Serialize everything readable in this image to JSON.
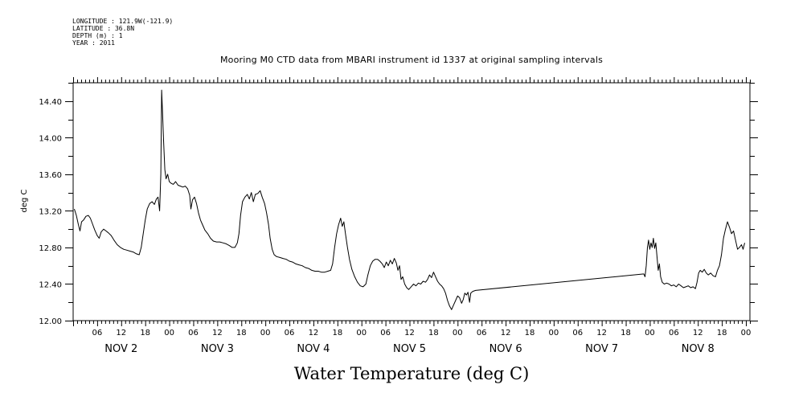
{
  "meta": {
    "longitude": "LONGITUDE : 121.9W(-121.9)",
    "latitude": "LATITUDE : 36.8N",
    "depth": "DEPTH (m) : 1",
    "year": "YEAR : 2011"
  },
  "chart_data": {
    "type": "line",
    "title": "Mooring M0 CTD data from MBARI instrument id 1337 at original sampling intervals",
    "bottom_title": "Water Temperature (deg C)",
    "ylabel": "deg C",
    "xlabel": "",
    "ylim": [
      12.0,
      14.6
    ],
    "yticks": [
      "12.00",
      "12.40",
      "12.80",
      "13.20",
      "13.60",
      "14.00",
      "14.40"
    ],
    "xlim_hours": [
      0,
      169
    ],
    "x_hour_ticks": [
      "06",
      "12",
      "18",
      "00",
      "06",
      "12",
      "18",
      "00",
      "06",
      "12",
      "18",
      "00",
      "06",
      "12",
      "18",
      "00",
      "06",
      "12",
      "18",
      "00",
      "06",
      "12",
      "18",
      "00",
      "06",
      "12",
      "18",
      "00"
    ],
    "day_labels": [
      "NOV  2",
      "NOV  3",
      "NOV  4",
      "NOV  5",
      "NOV  6",
      "NOV  7",
      "NOV  8"
    ],
    "grid": false,
    "x_unit": "hours since Nov 2 00:00 (2011)",
    "series": [
      {
        "color": "#000000",
        "points": [
          [
            0.3,
            13.22
          ],
          [
            0.8,
            13.15
          ],
          [
            1.3,
            13.05
          ],
          [
            1.7,
            12.98
          ],
          [
            2.1,
            13.08
          ],
          [
            2.6,
            13.1
          ],
          [
            3.2,
            13.14
          ],
          [
            3.8,
            13.15
          ],
          [
            4.3,
            13.12
          ],
          [
            4.9,
            13.05
          ],
          [
            5.4,
            12.99
          ],
          [
            6.0,
            12.93
          ],
          [
            6.5,
            12.9
          ],
          [
            7.0,
            12.97
          ],
          [
            7.6,
            13.0
          ],
          [
            8.2,
            12.98
          ],
          [
            8.8,
            12.96
          ],
          [
            9.5,
            12.93
          ],
          [
            10.2,
            12.88
          ],
          [
            11.0,
            12.83
          ],
          [
            11.8,
            12.8
          ],
          [
            12.6,
            12.78
          ],
          [
            13.4,
            12.77
          ],
          [
            14.2,
            12.76
          ],
          [
            15.0,
            12.75
          ],
          [
            15.8,
            12.73
          ],
          [
            16.5,
            12.72
          ],
          [
            17.0,
            12.8
          ],
          [
            17.5,
            12.95
          ],
          [
            18.0,
            13.1
          ],
          [
            18.5,
            13.22
          ],
          [
            19.1,
            13.28
          ],
          [
            19.7,
            13.3
          ],
          [
            20.3,
            13.27
          ],
          [
            20.8,
            13.33
          ],
          [
            21.2,
            13.35
          ],
          [
            21.6,
            13.2
          ],
          [
            21.9,
            13.6
          ],
          [
            22.1,
            14.52
          ],
          [
            22.3,
            14.3
          ],
          [
            22.6,
            13.95
          ],
          [
            22.9,
            13.65
          ],
          [
            23.2,
            13.55
          ],
          [
            23.6,
            13.6
          ],
          [
            24.0,
            13.52
          ],
          [
            24.5,
            13.5
          ],
          [
            25.0,
            13.49
          ],
          [
            25.6,
            13.52
          ],
          [
            26.2,
            13.48
          ],
          [
            26.8,
            13.47
          ],
          [
            27.4,
            13.46
          ],
          [
            28.0,
            13.47
          ],
          [
            28.6,
            13.44
          ],
          [
            29.1,
            13.37
          ],
          [
            29.4,
            13.22
          ],
          [
            29.8,
            13.32
          ],
          [
            30.3,
            13.35
          ],
          [
            30.8,
            13.28
          ],
          [
            31.3,
            13.18
          ],
          [
            31.8,
            13.1
          ],
          [
            32.3,
            13.05
          ],
          [
            32.9,
            12.99
          ],
          [
            33.6,
            12.95
          ],
          [
            34.3,
            12.9
          ],
          [
            35.0,
            12.87
          ],
          [
            35.8,
            12.86
          ],
          [
            36.6,
            12.86
          ],
          [
            37.4,
            12.85
          ],
          [
            38.2,
            12.84
          ],
          [
            39.0,
            12.82
          ],
          [
            39.7,
            12.8
          ],
          [
            40.4,
            12.8
          ],
          [
            41.0,
            12.85
          ],
          [
            41.4,
            12.95
          ],
          [
            41.8,
            13.15
          ],
          [
            42.3,
            13.3
          ],
          [
            42.9,
            13.35
          ],
          [
            43.5,
            13.38
          ],
          [
            44.0,
            13.33
          ],
          [
            44.5,
            13.4
          ],
          [
            45.0,
            13.3
          ],
          [
            45.5,
            13.38
          ],
          [
            46.1,
            13.39
          ],
          [
            46.7,
            13.42
          ],
          [
            47.2,
            13.35
          ],
          [
            47.8,
            13.28
          ],
          [
            48.3,
            13.18
          ],
          [
            48.8,
            13.05
          ],
          [
            49.2,
            12.9
          ],
          [
            49.7,
            12.78
          ],
          [
            50.2,
            12.72
          ],
          [
            50.8,
            12.7
          ],
          [
            51.6,
            12.69
          ],
          [
            52.4,
            12.68
          ],
          [
            53.2,
            12.67
          ],
          [
            54.0,
            12.65
          ],
          [
            54.8,
            12.64
          ],
          [
            55.6,
            12.62
          ],
          [
            56.4,
            12.61
          ],
          [
            57.2,
            12.6
          ],
          [
            58.0,
            12.58
          ],
          [
            58.8,
            12.57
          ],
          [
            59.6,
            12.55
          ],
          [
            60.4,
            12.54
          ],
          [
            61.2,
            12.54
          ],
          [
            62.0,
            12.53
          ],
          [
            62.8,
            12.53
          ],
          [
            63.6,
            12.54
          ],
          [
            64.3,
            12.55
          ],
          [
            64.8,
            12.62
          ],
          [
            65.3,
            12.8
          ],
          [
            65.8,
            12.95
          ],
          [
            66.3,
            13.05
          ],
          [
            66.8,
            13.12
          ],
          [
            67.2,
            13.03
          ],
          [
            67.6,
            13.08
          ],
          [
            68.0,
            12.95
          ],
          [
            68.5,
            12.8
          ],
          [
            69.0,
            12.67
          ],
          [
            69.6,
            12.56
          ],
          [
            70.3,
            12.48
          ],
          [
            71.0,
            12.42
          ],
          [
            71.7,
            12.38
          ],
          [
            72.4,
            12.37
          ],
          [
            73.1,
            12.4
          ],
          [
            73.6,
            12.5
          ],
          [
            74.2,
            12.6
          ],
          [
            74.8,
            12.65
          ],
          [
            75.4,
            12.67
          ],
          [
            76.0,
            12.67
          ],
          [
            76.6,
            12.65
          ],
          [
            77.2,
            12.62
          ],
          [
            77.7,
            12.58
          ],
          [
            78.2,
            12.64
          ],
          [
            78.7,
            12.6
          ],
          [
            79.2,
            12.66
          ],
          [
            79.7,
            12.62
          ],
          [
            80.2,
            12.68
          ],
          [
            80.7,
            12.63
          ],
          [
            81.1,
            12.55
          ],
          [
            81.5,
            12.6
          ],
          [
            81.9,
            12.45
          ],
          [
            82.3,
            12.48
          ],
          [
            82.8,
            12.4
          ],
          [
            83.3,
            12.36
          ],
          [
            83.8,
            12.34
          ],
          [
            84.4,
            12.37
          ],
          [
            85.0,
            12.4
          ],
          [
            85.6,
            12.38
          ],
          [
            86.2,
            12.41
          ],
          [
            86.8,
            12.4
          ],
          [
            87.4,
            12.43
          ],
          [
            88.0,
            12.42
          ],
          [
            88.5,
            12.45
          ],
          [
            89.0,
            12.5
          ],
          [
            89.5,
            12.47
          ],
          [
            90.0,
            12.53
          ],
          [
            90.5,
            12.48
          ],
          [
            91.0,
            12.43
          ],
          [
            91.5,
            12.4
          ],
          [
            92.0,
            12.38
          ],
          [
            92.5,
            12.35
          ],
          [
            93.0,
            12.3
          ],
          [
            93.5,
            12.22
          ],
          [
            94.0,
            12.16
          ],
          [
            94.5,
            12.12
          ],
          [
            95.0,
            12.17
          ],
          [
            95.5,
            12.22
          ],
          [
            96.0,
            12.27
          ],
          [
            96.5,
            12.25
          ],
          [
            97.0,
            12.19
          ],
          [
            97.4,
            12.23
          ],
          [
            97.8,
            12.3
          ],
          [
            98.2,
            12.28
          ],
          [
            98.6,
            12.31
          ],
          [
            99.0,
            12.2
          ],
          [
            99.3,
            12.3
          ],
          [
            99.8,
            12.32
          ],
          [
            100.5,
            12.33
          ],
          [
            142.5,
            12.51
          ],
          [
            142.8,
            12.48
          ],
          [
            143.1,
            12.6
          ],
          [
            143.4,
            12.8
          ],
          [
            143.7,
            12.88
          ],
          [
            144.0,
            12.78
          ],
          [
            144.3,
            12.85
          ],
          [
            144.6,
            12.8
          ],
          [
            144.9,
            12.9
          ],
          [
            145.2,
            12.79
          ],
          [
            145.5,
            12.85
          ],
          [
            145.8,
            12.7
          ],
          [
            146.1,
            12.55
          ],
          [
            146.4,
            12.62
          ],
          [
            146.7,
            12.48
          ],
          [
            147.1,
            12.42
          ],
          [
            147.6,
            12.4
          ],
          [
            148.2,
            12.41
          ],
          [
            148.8,
            12.4
          ],
          [
            149.4,
            12.38
          ],
          [
            150.0,
            12.39
          ],
          [
            150.6,
            12.37
          ],
          [
            151.2,
            12.4
          ],
          [
            151.8,
            12.38
          ],
          [
            152.4,
            12.36
          ],
          [
            153.0,
            12.37
          ],
          [
            153.6,
            12.38
          ],
          [
            154.2,
            12.36
          ],
          [
            154.8,
            12.37
          ],
          [
            155.4,
            12.35
          ],
          [
            155.8,
            12.42
          ],
          [
            156.2,
            12.52
          ],
          [
            156.6,
            12.55
          ],
          [
            157.1,
            12.53
          ],
          [
            157.6,
            12.56
          ],
          [
            158.1,
            12.52
          ],
          [
            158.6,
            12.5
          ],
          [
            159.2,
            12.52
          ],
          [
            159.8,
            12.49
          ],
          [
            160.4,
            12.48
          ],
          [
            160.9,
            12.55
          ],
          [
            161.4,
            12.6
          ],
          [
            161.9,
            12.72
          ],
          [
            162.4,
            12.9
          ],
          [
            162.9,
            13.0
          ],
          [
            163.4,
            13.08
          ],
          [
            163.9,
            13.02
          ],
          [
            164.4,
            12.95
          ],
          [
            164.9,
            12.98
          ],
          [
            165.4,
            12.88
          ],
          [
            165.9,
            12.78
          ],
          [
            166.4,
            12.8
          ],
          [
            166.9,
            12.83
          ],
          [
            167.3,
            12.78
          ],
          [
            167.7,
            12.85
          ]
        ]
      }
    ]
  }
}
